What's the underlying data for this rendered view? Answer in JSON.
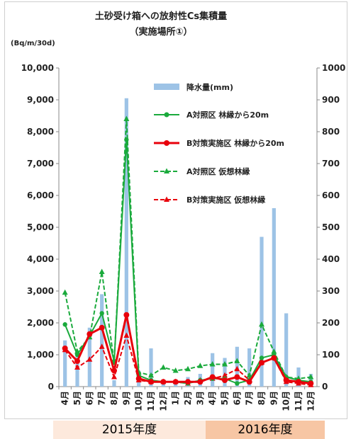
{
  "chart_data": {
    "type": "bar+line",
    "title": "土砂受け箱への放射性Cs集積量",
    "subtitle": "（実施場所①）",
    "ylabel_left": "(Bq/m/30d)",
    "y_left_range": [
      0,
      10000
    ],
    "y_left_ticks": [
      "0",
      "1,000",
      "2,000",
      "3,000",
      "4,000",
      "5,000",
      "6,000",
      "7,000",
      "8,000",
      "9,000",
      "10,000"
    ],
    "y_right_range": [
      0,
      1000
    ],
    "y_right_ticks": [
      "0",
      "100",
      "200",
      "300",
      "400",
      "500",
      "600",
      "700",
      "800",
      "900",
      "1000"
    ],
    "categories": [
      "4月",
      "5月",
      "6月",
      "7月",
      "8月",
      "9月",
      "10月",
      "11月",
      "12月",
      "1月",
      "2月",
      "3月",
      "4月",
      "5月",
      "6月",
      "7月",
      "8月",
      "9月",
      "10月",
      "11月",
      "12月"
    ],
    "bars": {
      "name": "降水量(mm)",
      "color": "#9dc3e6",
      "axis": "right",
      "values": [
        145,
        110,
        185,
        290,
        20,
        905,
        50,
        120,
        10,
        20,
        30,
        40,
        105,
        90,
        125,
        120,
        470,
        560,
        230,
        60,
        40
      ]
    },
    "series": [
      {
        "name": "A対照区 林縁から20m",
        "color": "#1aaa3c",
        "style": "solid",
        "marker": "circle",
        "values": [
          1950,
          1000,
          1600,
          2300,
          800,
          7750,
          350,
          200,
          150,
          150,
          100,
          200,
          250,
          250,
          100,
          200,
          900,
          1000,
          300,
          200,
          150
        ]
      },
      {
        "name": "B対策実施区 林縁から20m",
        "color": "#e8000b",
        "style": "solid",
        "marker": "circle",
        "values": [
          1200,
          800,
          1650,
          1850,
          500,
          2250,
          250,
          150,
          150,
          150,
          150,
          150,
          300,
          200,
          300,
          150,
          750,
          900,
          200,
          150,
          100
        ]
      },
      {
        "name": "A対照区 仮想林縁",
        "color": "#1aaa3c",
        "style": "dashed",
        "marker": "triangle",
        "values": [
          2950,
          1100,
          1550,
          3600,
          750,
          8400,
          450,
          350,
          600,
          500,
          550,
          650,
          700,
          700,
          800,
          350,
          1950,
          1100,
          300,
          250,
          300
        ]
      },
      {
        "name": "B対策実施区 仮想林縁",
        "color": "#e8000b",
        "style": "dashed",
        "marker": "triangle",
        "values": [
          1150,
          600,
          850,
          1250,
          300,
          1600,
          200,
          150,
          150,
          150,
          100,
          200,
          250,
          350,
          550,
          200,
          750,
          900,
          150,
          100,
          50
        ]
      }
    ],
    "legend_position": "top-right",
    "grid": false
  },
  "fiscal_years": {
    "fy2015": "2015年度",
    "fy2016": "2016年度"
  }
}
